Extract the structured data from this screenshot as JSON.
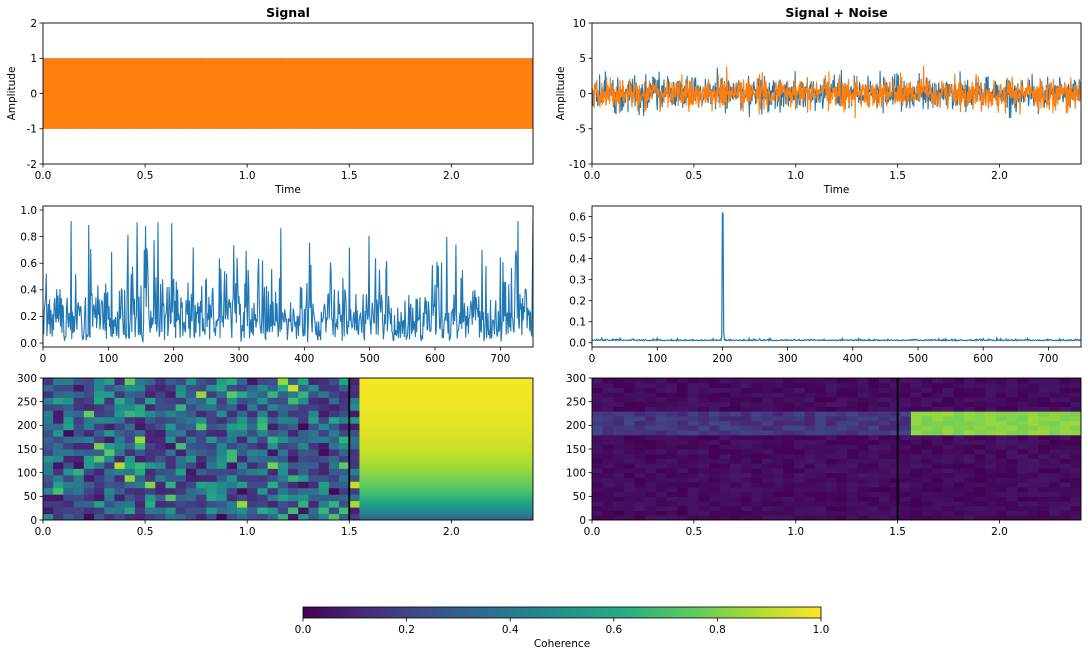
{
  "colors": {
    "series_blue": "#1f77b4",
    "series_orange": "#ff7f0e",
    "marker_line": "#000000",
    "colormap": "viridis"
  },
  "chart_data": [
    {
      "id": "signal",
      "type": "line",
      "title": "Signal",
      "xlabel": "Time",
      "ylabel": "Amplitude",
      "xlim": [
        0,
        2.4
      ],
      "ylim": [
        -2,
        2
      ],
      "xticks": [
        0.0,
        0.5,
        1.0,
        1.5,
        2.0
      ],
      "yticks": [
        -2,
        -1,
        0,
        1,
        2
      ],
      "series": [
        {
          "color": "#1f77b4",
          "min": -1,
          "max": 1,
          "description_values": "dense oscillation between -1 and 1"
        },
        {
          "color": "#ff7f0e",
          "min": -1,
          "max": 1,
          "description_values": "dense oscillation between -1 and 1"
        }
      ]
    },
    {
      "id": "signal_noise",
      "type": "line",
      "title": "Signal + Noise",
      "xlabel": "Time",
      "ylabel": "Amplitude",
      "xlim": [
        0,
        2.4
      ],
      "ylim": [
        -10,
        10
      ],
      "xticks": [
        0.0,
        0.5,
        1.0,
        1.5,
        2.0
      ],
      "yticks": [
        -10,
        -5,
        0,
        5,
        10
      ],
      "series": [
        {
          "color": "#1f77b4",
          "min": -3.5,
          "max": 4.5
        },
        {
          "color": "#ff7f0e",
          "min": -3.5,
          "max": 4
        }
      ]
    },
    {
      "id": "spectrum_signal",
      "type": "line",
      "title": "",
      "xlabel": "",
      "ylabel": "",
      "xlim": [
        0,
        750
      ],
      "ylim": [
        -0.03,
        1.03
      ],
      "xticks": [
        0,
        100,
        200,
        300,
        400,
        500,
        600,
        700
      ],
      "yticks": [
        0.0,
        0.2,
        0.4,
        0.6,
        0.8,
        1.0
      ],
      "series": [
        {
          "color": "#1f77b4",
          "min": 0,
          "max": 0.93
        }
      ]
    },
    {
      "id": "spectrum_noise",
      "type": "line",
      "title": "",
      "xlabel": "",
      "ylabel": "",
      "xlim": [
        0,
        750
      ],
      "ylim": [
        -0.02,
        0.65
      ],
      "xticks": [
        0,
        100,
        200,
        300,
        400,
        500,
        600,
        700
      ],
      "yticks": [
        0.0,
        0.1,
        0.2,
        0.3,
        0.4,
        0.5,
        0.6
      ],
      "series": [
        {
          "color": "#1f77b4",
          "baseline": 0.01,
          "peak_x": 200,
          "peak_y": 0.62
        }
      ]
    },
    {
      "id": "coherence_signal",
      "type": "heatmap",
      "title": "",
      "xlim": [
        0,
        2.4
      ],
      "ylim": [
        0,
        300
      ],
      "xticks": [
        0.0,
        0.5,
        1.0,
        1.5,
        2.0
      ],
      "yticks": [
        0,
        50,
        100,
        150,
        200,
        250,
        300
      ],
      "vline_x": 1.5,
      "notes_values": "random coherence before t=1.5; after t=1.5 coherence rises with frequency toward 1.0"
    },
    {
      "id": "coherence_noise",
      "type": "heatmap",
      "title": "",
      "xlim": [
        0,
        2.4
      ],
      "ylim": [
        0,
        300
      ],
      "xticks": [
        0.0,
        0.5,
        1.0,
        1.5,
        2.0
      ],
      "yticks": [
        0,
        50,
        100,
        150,
        200,
        250,
        300
      ],
      "vline_x": 1.5,
      "band": {
        "y_from": 185,
        "y_to": 225,
        "value_after": 0.82,
        "value_before": 0.1
      }
    },
    {
      "id": "colorbar",
      "type": "colorbar",
      "label": "Coherence",
      "range": [
        0,
        1
      ],
      "ticks": [
        0.0,
        0.2,
        0.4,
        0.6,
        0.8,
        1.0
      ]
    }
  ]
}
